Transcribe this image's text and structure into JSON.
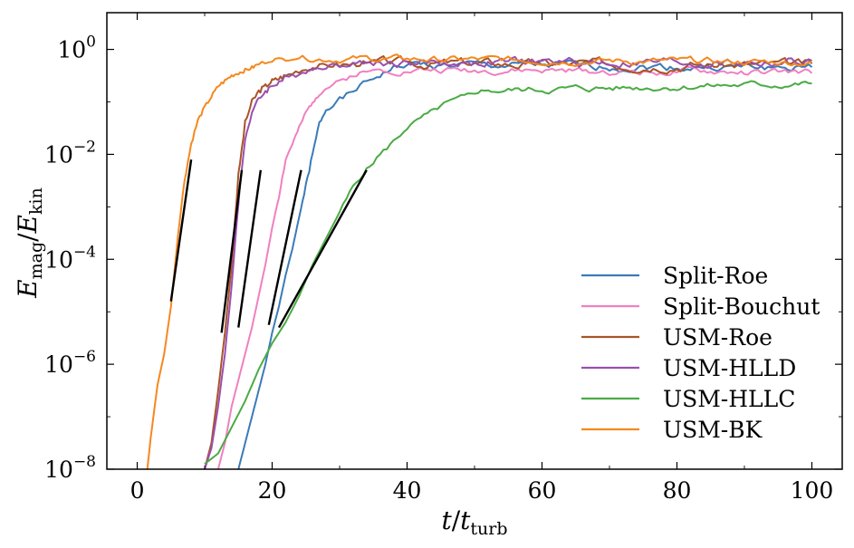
{
  "chart_data": {
    "type": "line",
    "title": "",
    "xlabel_main": "t",
    "xlabel_over": "/",
    "xlabel_denom": "t",
    "xlabel_sub": "turb",
    "ylabel_num": "E",
    "ylabel_num_sub": "mag",
    "ylabel_over": "/",
    "ylabel_den": "E",
    "ylabel_den_sub": "kin",
    "xlim": [
      -4.5,
      104.5
    ],
    "ylim_log10": [
      -8,
      0.7
    ],
    "yscale": "log",
    "legend_position": "lower-right",
    "xticks": [
      {
        "value": 0,
        "label": "0"
      },
      {
        "value": 20,
        "label": "20"
      },
      {
        "value": 40,
        "label": "40"
      },
      {
        "value": 60,
        "label": "60"
      },
      {
        "value": 80,
        "label": "80"
      },
      {
        "value": 100,
        "label": "100"
      }
    ],
    "yticks": [
      {
        "exp": -8,
        "base": "10",
        "sup": "−8"
      },
      {
        "exp": -6,
        "base": "10",
        "sup": "−6"
      },
      {
        "exp": -4,
        "base": "10",
        "sup": "−4"
      },
      {
        "exp": -2,
        "base": "10",
        "sup": "−2"
      },
      {
        "exp": 0,
        "base": "10",
        "sup": "0"
      }
    ],
    "series": [
      {
        "name": "Split-Roe",
        "color": "#3a7bb8",
        "x": [
          15,
          16,
          17,
          18,
          19,
          20,
          21,
          22,
          23,
          24,
          25,
          26,
          27,
          28,
          30,
          32,
          34,
          36,
          38,
          40
        ],
        "y": [
          -8,
          -7.5,
          -7,
          -6.5,
          -6,
          -5.4,
          -4.9,
          -4.3,
          -3.8,
          -3.2,
          -2.6,
          -2.0,
          -1.4,
          -1.15,
          -0.95,
          -0.8,
          -0.6,
          -0.5,
          -0.35,
          -0.3
        ],
        "noise_amp": 0.06,
        "end_level": -0.35,
        "seed": 1
      },
      {
        "name": "Split-Bouchut",
        "color": "#f080c0",
        "x": [
          12,
          13,
          14,
          15,
          16,
          17,
          18,
          19,
          20,
          21,
          22,
          23,
          24,
          25,
          26,
          27,
          28,
          30,
          32,
          34,
          36
        ],
        "y": [
          -8,
          -7.5,
          -6.8,
          -6.3,
          -5.8,
          -5.3,
          -4.7,
          -4.1,
          -3.4,
          -2.8,
          -2.1,
          -1.8,
          -1.5,
          -1.2,
          -1.0,
          -0.85,
          -0.75,
          -0.6,
          -0.5,
          -0.42,
          -0.38
        ],
        "noise_amp": 0.05,
        "end_level": -0.45,
        "seed": 2
      },
      {
        "name": "USM-Roe",
        "color": "#a85428",
        "x": [
          10,
          11,
          12,
          13,
          14,
          15,
          16,
          17,
          18,
          19,
          20,
          21,
          22,
          24,
          26,
          28,
          30,
          32,
          34
        ],
        "y": [
          -8,
          -7.5,
          -6.5,
          -5.4,
          -4.1,
          -2.4,
          -1.4,
          -1.0,
          -0.8,
          -0.7,
          -0.6,
          -0.55,
          -0.5,
          -0.4,
          -0.35,
          -0.3,
          -0.3,
          -0.28,
          -0.26
        ],
        "noise_amp": 0.07,
        "end_level": -0.3,
        "seed": 3
      },
      {
        "name": "USM-HLLD",
        "color": "#9a4fb0",
        "x": [
          10,
          11,
          12,
          13,
          14,
          15,
          16,
          17,
          18,
          19,
          20,
          21,
          22,
          24,
          26,
          28,
          30,
          32,
          34
        ],
        "y": [
          -8,
          -7.6,
          -6.8,
          -5.8,
          -4.5,
          -2.9,
          -1.7,
          -1.2,
          -0.95,
          -0.8,
          -0.7,
          -0.62,
          -0.55,
          -0.45,
          -0.38,
          -0.32,
          -0.3,
          -0.27,
          -0.25
        ],
        "noise_amp": 0.07,
        "end_level": -0.25,
        "seed": 4
      },
      {
        "name": "USM-HLLC",
        "color": "#4aab44",
        "x": [
          10,
          12,
          14,
          16,
          18,
          20,
          22,
          24,
          26,
          28,
          30,
          32,
          34,
          36,
          38,
          40,
          42,
          44,
          46,
          48,
          50,
          52
        ],
        "y": [
          -7.9,
          -7.7,
          -7.2,
          -6.7,
          -6.1,
          -5.6,
          -5.2,
          -4.7,
          -4.1,
          -3.6,
          -3.1,
          -2.6,
          -2.3,
          -2.0,
          -1.75,
          -1.5,
          -1.3,
          -1.15,
          -1.0,
          -0.9,
          -0.82,
          -0.78
        ],
        "noise_amp": 0.05,
        "end_level": -0.65,
        "seed": 5
      },
      {
        "name": "USM-BK",
        "color": "#f5881e",
        "x": [
          1.5,
          2,
          3,
          4,
          5,
          6,
          7,
          8,
          9,
          10,
          11,
          12,
          13,
          14,
          15,
          16,
          17,
          18,
          20,
          22,
          24
        ],
        "y": [
          -8,
          -7.4,
          -6.4,
          -5.8,
          -4.9,
          -3.6,
          -2.5,
          -1.8,
          -1.35,
          -1.1,
          -0.9,
          -0.7,
          -0.6,
          -0.5,
          -0.45,
          -0.4,
          -0.35,
          -0.28,
          -0.2,
          -0.18,
          -0.17
        ],
        "noise_amp": 0.05,
        "end_level": -0.25,
        "seed": 6
      }
    ],
    "fit_lines": [
      {
        "x": [
          5,
          8
        ],
        "y": [
          -4.8,
          -2.1
        ]
      },
      {
        "x": [
          12.5,
          15.5
        ],
        "y": [
          -5.4,
          -2.3
        ]
      },
      {
        "x": [
          15,
          18.3
        ],
        "y": [
          -5.3,
          -2.3
        ]
      },
      {
        "x": [
          19.5,
          24.3
        ],
        "y": [
          -5.25,
          -2.3
        ]
      },
      {
        "x": [
          21,
          34
        ],
        "y": [
          -5.3,
          -2.3
        ]
      }
    ]
  }
}
